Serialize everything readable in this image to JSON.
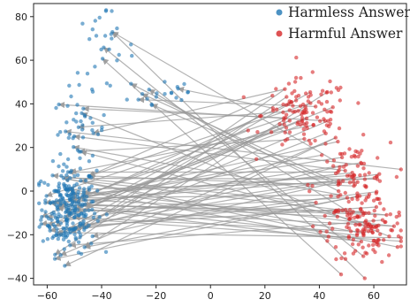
{
  "chart_data": {
    "type": "scatter",
    "xlim": [
      -65,
      72
    ],
    "ylim": [
      -43,
      86
    ],
    "xticks": [
      -60,
      -40,
      -20,
      0,
      20,
      40,
      60
    ],
    "yticks": [
      -40,
      -20,
      0,
      20,
      40,
      60,
      80
    ],
    "xtick_labels": [
      "−60",
      "−40",
      "−20",
      "0",
      "20",
      "40",
      "60"
    ],
    "ytick_labels": [
      "−40",
      "−20",
      "0",
      "20",
      "40",
      "60",
      "80"
    ],
    "legend_placement": "top-right",
    "grid": false,
    "series": [
      {
        "name": "Harmless Answer",
        "color": "#1f77b4",
        "clusters": [
          {
            "center": [
              -52,
              -8
            ],
            "spread": [
              5,
              10
            ],
            "count": 260
          },
          {
            "center": [
              -48,
              28
            ],
            "spread": [
              5,
              8
            ],
            "count": 45
          },
          {
            "center": [
              -40,
              65
            ],
            "spread": [
              6,
              9
            ],
            "count": 30
          },
          {
            "center": [
              -18,
              45
            ],
            "spread": [
              8,
              5
            ],
            "count": 20
          }
        ]
      },
      {
        "name": "Harmful Answer",
        "color": "#d62728",
        "clusters": [
          {
            "center": [
              35,
              35
            ],
            "spread": [
              8,
              8
            ],
            "count": 120
          },
          {
            "center": [
              52,
              2
            ],
            "spread": [
              7,
              10
            ],
            "count": 120
          },
          {
            "center": [
              58,
              -18
            ],
            "spread": [
              7,
              8
            ],
            "count": 110
          }
        ]
      }
    ],
    "arrows": {
      "color": "#999999",
      "count": 80,
      "direction": "from Harmful Answer to Harmless Answer"
    }
  }
}
